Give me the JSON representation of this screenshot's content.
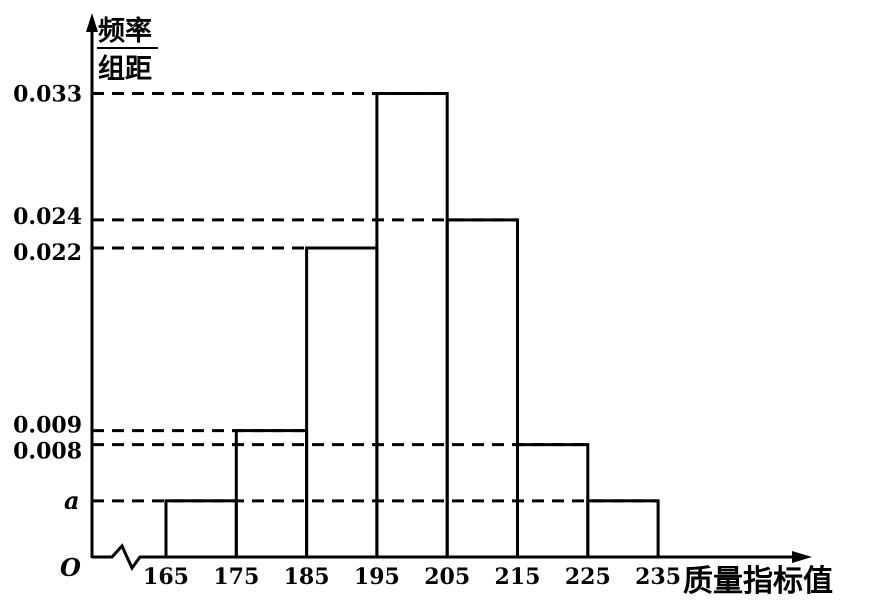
{
  "chart_data": {
    "type": "bar",
    "title": "",
    "bin_edges": [
      165,
      175,
      185,
      195,
      205,
      215,
      225,
      235
    ],
    "values": [
      {
        "from": 165,
        "to": 175,
        "value": "a"
      },
      {
        "from": 175,
        "to": 185,
        "value": 0.009
      },
      {
        "from": 185,
        "to": 195,
        "value": 0.022
      },
      {
        "from": 195,
        "to": 205,
        "value": 0.033
      },
      {
        "from": 205,
        "to": 215,
        "value": 0.024
      },
      {
        "from": 215,
        "to": 225,
        "value": 0.008
      },
      {
        "from": 225,
        "to": 235,
        "value": "a"
      }
    ],
    "bar_heights": [
      0.004,
      0.009,
      0.022,
      0.033,
      0.024,
      0.008,
      0.004
    ],
    "x_tick_labels": [
      "165",
      "175",
      "185",
      "195",
      "205",
      "215",
      "225",
      "235"
    ],
    "y_tick_labels": [
      {
        "label": "0.033",
        "value": 0.033
      },
      {
        "label": "0.024",
        "value": 0.024
      },
      {
        "label": "0.022",
        "value": 0.022
      },
      {
        "label": "0.009",
        "value": 0.009
      },
      {
        "label": "0.008",
        "value": 0.008
      },
      {
        "label": "a",
        "value": 0.004
      }
    ],
    "ylabel_numerator": "频率",
    "ylabel_denominator": "组距",
    "xlabel": "质量指标值",
    "origin_label": "O",
    "xlim": [
      155,
      245
    ],
    "ylim": [
      0,
      0.04
    ],
    "axis_break": true,
    "grid": false,
    "reference_lines": "dashed"
  }
}
